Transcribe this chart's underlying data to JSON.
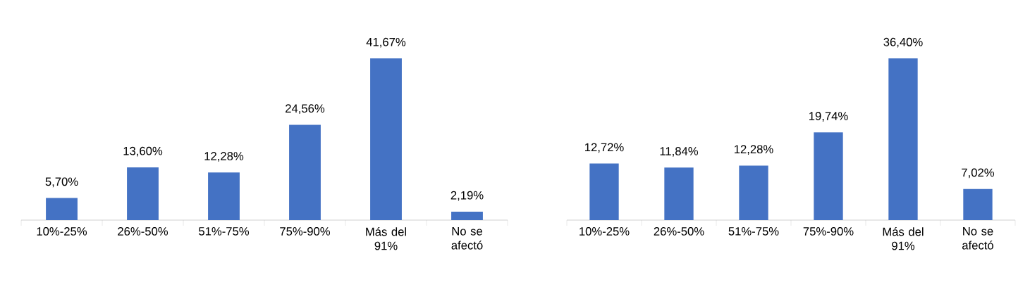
{
  "chart_data": [
    {
      "type": "bar",
      "categories": [
        "10%-25%",
        "26%-50%",
        "51%-75%",
        "75%-90%",
        "Más del 91%",
        "No se afectó"
      ],
      "values": [
        5.7,
        13.6,
        12.28,
        24.56,
        41.67,
        2.19
      ],
      "color": "#4472c4",
      "value_labels": [
        "5,70%",
        "13,60%",
        "12,28%",
        "24,56%",
        "41,67%",
        "2,19%"
      ]
    },
    {
      "type": "bar",
      "categories": [
        "10%-25%",
        "26%-50%",
        "51%-75%",
        "75%-90%",
        "Más del 91%",
        "No se afectó"
      ],
      "values": [
        12.72,
        11.84,
        12.28,
        19.74,
        36.4,
        7.02
      ],
      "color": "#4472c4",
      "value_labels": [
        "12,72%",
        "11,84%",
        "12,28%",
        "19,74%",
        "36,40%",
        "7,02%"
      ]
    }
  ]
}
